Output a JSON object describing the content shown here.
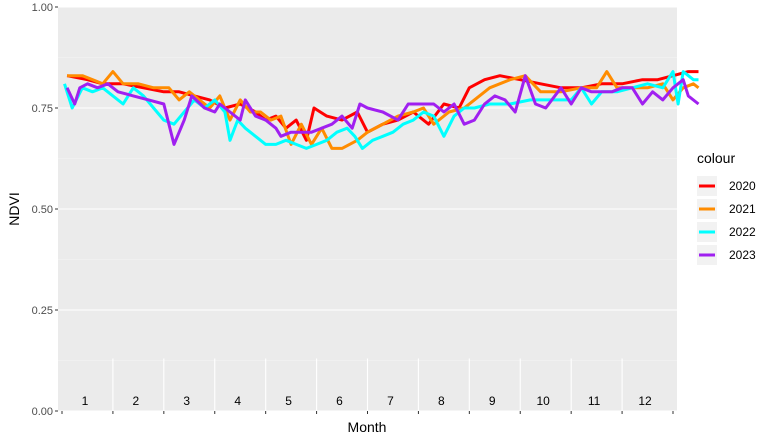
{
  "chart_data": {
    "type": "line",
    "xlabel": "Month",
    "ylabel": "NDVI",
    "xlim": [
      0,
      12
    ],
    "ylim": [
      0,
      1
    ],
    "yticks": [
      "0.00",
      "0.25",
      "0.50",
      "0.75",
      "1.00"
    ],
    "month_labels": [
      "1",
      "2",
      "3",
      "4",
      "5",
      "6",
      "7",
      "8",
      "9",
      "10",
      "11",
      "12"
    ],
    "legend_title": "colour",
    "legend_position": "right",
    "background": "#EBEBEB",
    "grid": true,
    "series": [
      {
        "name": "2020",
        "color": "#FF0000",
        "points": [
          [
            0.1,
            0.83
          ],
          [
            0.5,
            0.82
          ],
          [
            0.8,
            0.81
          ],
          [
            1.2,
            0.81
          ],
          [
            1.6,
            0.8
          ],
          [
            2.0,
            0.79
          ],
          [
            2.3,
            0.79
          ],
          [
            2.6,
            0.78
          ],
          [
            2.9,
            0.77
          ],
          [
            3.2,
            0.75
          ],
          [
            3.5,
            0.76
          ],
          [
            3.8,
            0.74
          ],
          [
            4.0,
            0.72
          ],
          [
            4.2,
            0.73
          ],
          [
            4.4,
            0.7
          ],
          [
            4.6,
            0.72
          ],
          [
            4.8,
            0.67
          ],
          [
            4.95,
            0.75
          ],
          [
            5.2,
            0.73
          ],
          [
            5.5,
            0.72
          ],
          [
            5.8,
            0.74
          ],
          [
            6.0,
            0.69
          ],
          [
            6.3,
            0.71
          ],
          [
            6.6,
            0.72
          ],
          [
            6.9,
            0.74
          ],
          [
            7.2,
            0.71
          ],
          [
            7.5,
            0.76
          ],
          [
            7.8,
            0.75
          ],
          [
            8.0,
            0.8
          ],
          [
            8.3,
            0.82
          ],
          [
            8.6,
            0.83
          ],
          [
            9.0,
            0.82
          ],
          [
            9.4,
            0.81
          ],
          [
            9.8,
            0.8
          ],
          [
            10.2,
            0.8
          ],
          [
            10.6,
            0.81
          ],
          [
            11.0,
            0.81
          ],
          [
            11.4,
            0.82
          ],
          [
            11.7,
            0.82
          ],
          [
            12.0,
            0.83
          ],
          [
            12.3,
            0.84
          ],
          [
            12.5,
            0.84
          ]
        ]
      },
      {
        "name": "2021",
        "color": "#FF8C00",
        "points": [
          [
            0.1,
            0.83
          ],
          [
            0.4,
            0.83
          ],
          [
            0.6,
            0.82
          ],
          [
            0.8,
            0.81
          ],
          [
            1.0,
            0.84
          ],
          [
            1.2,
            0.81
          ],
          [
            1.5,
            0.81
          ],
          [
            1.8,
            0.8
          ],
          [
            2.1,
            0.8
          ],
          [
            2.3,
            0.77
          ],
          [
            2.5,
            0.79
          ],
          [
            2.7,
            0.77
          ],
          [
            2.9,
            0.75
          ],
          [
            3.1,
            0.78
          ],
          [
            3.3,
            0.72
          ],
          [
            3.5,
            0.77
          ],
          [
            3.7,
            0.74
          ],
          [
            3.9,
            0.74
          ],
          [
            4.1,
            0.72
          ],
          [
            4.3,
            0.73
          ],
          [
            4.5,
            0.66
          ],
          [
            4.7,
            0.71
          ],
          [
            4.9,
            0.66
          ],
          [
            5.1,
            0.7
          ],
          [
            5.3,
            0.65
          ],
          [
            5.5,
            0.65
          ],
          [
            5.8,
            0.67
          ],
          [
            6.0,
            0.69
          ],
          [
            6.3,
            0.71
          ],
          [
            6.6,
            0.73
          ],
          [
            6.9,
            0.74
          ],
          [
            7.1,
            0.75
          ],
          [
            7.3,
            0.71
          ],
          [
            7.6,
            0.74
          ],
          [
            7.9,
            0.75
          ],
          [
            8.1,
            0.77
          ],
          [
            8.4,
            0.8
          ],
          [
            8.8,
            0.82
          ],
          [
            9.1,
            0.83
          ],
          [
            9.4,
            0.79
          ],
          [
            9.8,
            0.79
          ],
          [
            10.2,
            0.8
          ],
          [
            10.5,
            0.8
          ],
          [
            10.7,
            0.84
          ],
          [
            10.9,
            0.8
          ],
          [
            11.2,
            0.8
          ],
          [
            11.5,
            0.8
          ],
          [
            11.8,
            0.81
          ],
          [
            12.0,
            0.77
          ],
          [
            12.2,
            0.8
          ],
          [
            12.4,
            0.81
          ],
          [
            12.5,
            0.8
          ]
        ]
      },
      {
        "name": "2022",
        "color": "#00FFFF",
        "points": [
          [
            0.05,
            0.81
          ],
          [
            0.2,
            0.75
          ],
          [
            0.4,
            0.8
          ],
          [
            0.6,
            0.79
          ],
          [
            0.8,
            0.8
          ],
          [
            1.0,
            0.78
          ],
          [
            1.2,
            0.76
          ],
          [
            1.4,
            0.8
          ],
          [
            1.6,
            0.78
          ],
          [
            1.8,
            0.75
          ],
          [
            2.0,
            0.72
          ],
          [
            2.2,
            0.71
          ],
          [
            2.4,
            0.74
          ],
          [
            2.6,
            0.77
          ],
          [
            2.8,
            0.75
          ],
          [
            3.0,
            0.77
          ],
          [
            3.2,
            0.74
          ],
          [
            3.3,
            0.67
          ],
          [
            3.45,
            0.72
          ],
          [
            3.6,
            0.7
          ],
          [
            3.8,
            0.68
          ],
          [
            4.0,
            0.66
          ],
          [
            4.2,
            0.66
          ],
          [
            4.4,
            0.67
          ],
          [
            4.6,
            0.66
          ],
          [
            4.8,
            0.65
          ],
          [
            5.0,
            0.66
          ],
          [
            5.2,
            0.67
          ],
          [
            5.4,
            0.69
          ],
          [
            5.6,
            0.7
          ],
          [
            5.75,
            0.68
          ],
          [
            5.9,
            0.65
          ],
          [
            6.1,
            0.67
          ],
          [
            6.3,
            0.68
          ],
          [
            6.5,
            0.69
          ],
          [
            6.7,
            0.71
          ],
          [
            6.9,
            0.72
          ],
          [
            7.1,
            0.74
          ],
          [
            7.3,
            0.73
          ],
          [
            7.5,
            0.68
          ],
          [
            7.7,
            0.73
          ],
          [
            7.9,
            0.75
          ],
          [
            8.1,
            0.75
          ],
          [
            8.4,
            0.76
          ],
          [
            8.8,
            0.76
          ],
          [
            9.2,
            0.77
          ],
          [
            9.6,
            0.77
          ],
          [
            10.0,
            0.77
          ],
          [
            10.2,
            0.8
          ],
          [
            10.4,
            0.76
          ],
          [
            10.6,
            0.79
          ],
          [
            10.9,
            0.79
          ],
          [
            11.2,
            0.8
          ],
          [
            11.5,
            0.81
          ],
          [
            11.8,
            0.8
          ],
          [
            12.0,
            0.84
          ],
          [
            12.1,
            0.76
          ],
          [
            12.2,
            0.84
          ],
          [
            12.4,
            0.82
          ],
          [
            12.5,
            0.82
          ]
        ]
      },
      {
        "name": "2023",
        "color": "#A020F0",
        "points": [
          [
            0.1,
            0.8
          ],
          [
            0.25,
            0.76
          ],
          [
            0.35,
            0.8
          ],
          [
            0.5,
            0.81
          ],
          [
            0.7,
            0.8
          ],
          [
            0.9,
            0.81
          ],
          [
            1.1,
            0.79
          ],
          [
            1.4,
            0.78
          ],
          [
            1.7,
            0.77
          ],
          [
            2.0,
            0.76
          ],
          [
            2.2,
            0.66
          ],
          [
            2.4,
            0.72
          ],
          [
            2.55,
            0.78
          ],
          [
            2.8,
            0.75
          ],
          [
            3.0,
            0.74
          ],
          [
            3.1,
            0.76
          ],
          [
            3.3,
            0.74
          ],
          [
            3.5,
            0.72
          ],
          [
            3.6,
            0.77
          ],
          [
            3.8,
            0.73
          ],
          [
            4.0,
            0.72
          ],
          [
            4.2,
            0.7
          ],
          [
            4.3,
            0.68
          ],
          [
            4.5,
            0.69
          ],
          [
            4.7,
            0.69
          ],
          [
            4.9,
            0.69
          ],
          [
            5.1,
            0.7
          ],
          [
            5.3,
            0.71
          ],
          [
            5.5,
            0.73
          ],
          [
            5.7,
            0.7
          ],
          [
            5.85,
            0.76
          ],
          [
            6.0,
            0.75
          ],
          [
            6.3,
            0.74
          ],
          [
            6.6,
            0.72
          ],
          [
            6.8,
            0.76
          ],
          [
            7.1,
            0.76
          ],
          [
            7.3,
            0.76
          ],
          [
            7.5,
            0.74
          ],
          [
            7.7,
            0.76
          ],
          [
            7.9,
            0.71
          ],
          [
            8.1,
            0.72
          ],
          [
            8.3,
            0.76
          ],
          [
            8.5,
            0.78
          ],
          [
            8.7,
            0.77
          ],
          [
            8.9,
            0.74
          ],
          [
            9.1,
            0.83
          ],
          [
            9.3,
            0.76
          ],
          [
            9.5,
            0.75
          ],
          [
            9.8,
            0.8
          ],
          [
            10.0,
            0.76
          ],
          [
            10.2,
            0.8
          ],
          [
            10.4,
            0.79
          ],
          [
            10.6,
            0.79
          ],
          [
            10.8,
            0.79
          ],
          [
            11.0,
            0.8
          ],
          [
            11.2,
            0.8
          ],
          [
            11.4,
            0.76
          ],
          [
            11.6,
            0.79
          ],
          [
            11.8,
            0.77
          ],
          [
            12.0,
            0.8
          ],
          [
            12.2,
            0.82
          ],
          [
            12.3,
            0.78
          ],
          [
            12.5,
            0.76
          ]
        ]
      }
    ]
  }
}
